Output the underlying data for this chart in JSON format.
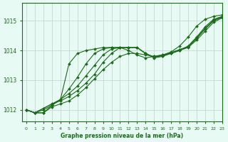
{
  "title": "Graphe pression niveau de la mer (hPa)",
  "background_color": "#e8faf4",
  "grid_color": "#c8d8d0",
  "line_color": "#1a6b1a",
  "xlim": [
    -0.5,
    23
  ],
  "ylim": [
    1011.6,
    1015.6
  ],
  "yticks": [
    1012,
    1013,
    1014,
    1015
  ],
  "xticks": [
    0,
    1,
    2,
    3,
    4,
    5,
    6,
    7,
    8,
    9,
    10,
    11,
    12,
    13,
    14,
    15,
    16,
    17,
    18,
    19,
    20,
    21,
    22,
    23
  ],
  "series": [
    [
      1012.0,
      1011.9,
      1011.9,
      1012.1,
      1012.2,
      1012.3,
      1012.5,
      1012.75,
      1013.05,
      1013.35,
      1013.6,
      1013.8,
      1013.9,
      1013.9,
      1013.85,
      1013.8,
      1013.85,
      1013.9,
      1014.0,
      1014.15,
      1014.45,
      1014.8,
      1015.05,
      1015.15
    ],
    [
      1012.0,
      1011.9,
      1012.0,
      1012.15,
      1012.35,
      1012.7,
      1013.1,
      1013.55,
      1013.9,
      1014.05,
      1014.1,
      1014.1,
      1014.1,
      1014.1,
      1013.9,
      1013.75,
      1013.8,
      1013.9,
      1014.0,
      1014.1,
      1014.35,
      1014.65,
      1014.95,
      1015.1
    ],
    [
      1012.0,
      1011.9,
      1012.05,
      1012.2,
      1012.35,
      1012.55,
      1012.8,
      1013.15,
      1013.5,
      1013.85,
      1014.05,
      1014.1,
      1014.1,
      1014.1,
      1013.9,
      1013.78,
      1013.82,
      1013.92,
      1014.02,
      1014.12,
      1014.4,
      1014.72,
      1015.0,
      1015.12
    ],
    [
      1012.0,
      1011.9,
      1012.05,
      1012.2,
      1012.3,
      1012.45,
      1012.65,
      1012.9,
      1013.2,
      1013.6,
      1013.9,
      1014.1,
      1014.1,
      1014.1,
      1013.9,
      1013.77,
      1013.83,
      1013.93,
      1014.03,
      1014.13,
      1014.42,
      1014.75,
      1015.02,
      1015.13
    ]
  ],
  "series2": [
    [
      1012.0,
      1011.9,
      1011.9,
      1012.15,
      1012.35,
      1013.55,
      1013.9,
      1014.0,
      1014.05,
      1014.1,
      1014.1,
      1014.1,
      1014.0,
      1013.85,
      1013.75,
      1013.8,
      1013.85,
      1013.95,
      1014.15,
      1014.45,
      1014.82,
      1015.05,
      1015.15,
      1015.2
    ]
  ]
}
